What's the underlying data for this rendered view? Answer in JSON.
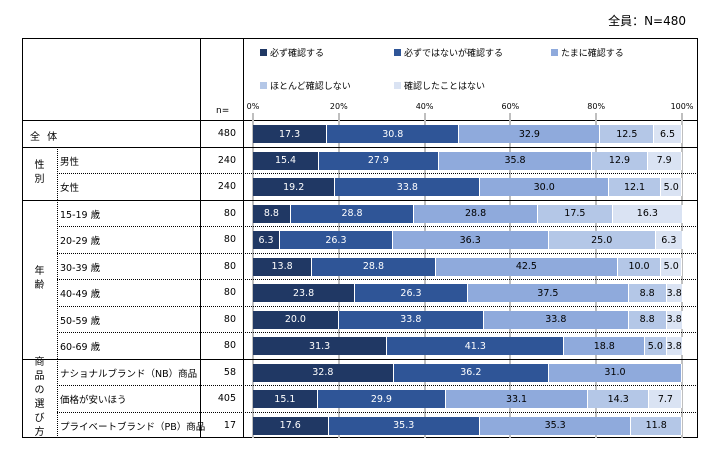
{
  "title": "全員：N=480",
  "n_header": "n=",
  "chart_data": {
    "type": "bar",
    "stacked": true,
    "orientation": "horizontal",
    "xlim": [
      0,
      100
    ],
    "ticks": [
      "0%",
      "20%",
      "40%",
      "60%",
      "80%",
      "100%"
    ],
    "series": [
      {
        "name": "必ず確認する",
        "color": "#203864"
      },
      {
        "name": "必ずではないが確認する",
        "color": "#2f5597"
      },
      {
        "name": "たまに確認する",
        "color": "#8faadc"
      },
      {
        "name": "ほとんど確認しない",
        "color": "#b4c7e7"
      },
      {
        "name": "確認したことはない",
        "color": "#dae3f3"
      }
    ],
    "groups": [
      {
        "label": "全 体",
        "rows": [
          {
            "label": "",
            "n": "480",
            "values": [
              17.3,
              30.8,
              32.9,
              12.5,
              6.5
            ]
          }
        ]
      },
      {
        "label": "性別",
        "rows": [
          {
            "label": "男性",
            "n": "240",
            "values": [
              15.4,
              27.9,
              35.8,
              12.9,
              7.9
            ]
          },
          {
            "label": "女性",
            "n": "240",
            "values": [
              19.2,
              33.8,
              30.0,
              12.1,
              5.0
            ]
          }
        ]
      },
      {
        "label": "年齢",
        "rows": [
          {
            "label": "15-19 歳",
            "n": "80",
            "values": [
              8.8,
              28.8,
              28.8,
              17.5,
              16.3
            ]
          },
          {
            "label": "20-29 歳",
            "n": "80",
            "values": [
              6.3,
              26.3,
              36.3,
              25.0,
              6.3
            ]
          },
          {
            "label": "30-39 歳",
            "n": "80",
            "values": [
              13.8,
              28.8,
              42.5,
              10.0,
              5.0
            ]
          },
          {
            "label": "40-49 歳",
            "n": "80",
            "values": [
              23.8,
              26.3,
              37.5,
              8.8,
              3.8
            ]
          },
          {
            "label": "50-59 歳",
            "n": "80",
            "values": [
              20.0,
              33.8,
              33.8,
              8.8,
              3.8
            ]
          },
          {
            "label": "60-69 歳",
            "n": "80",
            "values": [
              31.3,
              41.3,
              18.8,
              5.0,
              3.8
            ]
          }
        ]
      },
      {
        "label": "商品の選び方",
        "rows": [
          {
            "label": "ナショナルブランド（NB）商品",
            "n": "58",
            "values": [
              32.8,
              36.2,
              31.0,
              0,
              0
            ]
          },
          {
            "label": "価格が安いほう",
            "n": "405",
            "values": [
              15.1,
              29.9,
              33.1,
              14.3,
              7.7
            ]
          },
          {
            "label": "プライベートブランド（PB）商品",
            "n": "17",
            "values": [
              17.6,
              35.3,
              35.3,
              11.8,
              0
            ]
          }
        ]
      }
    ]
  }
}
